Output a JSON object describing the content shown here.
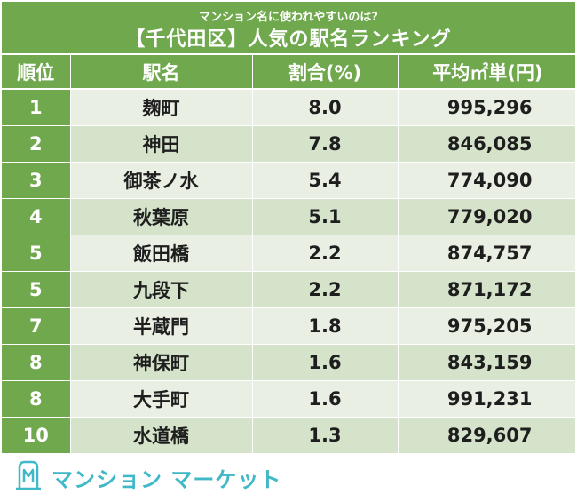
{
  "header": {
    "subtitle": "マンション名に使われやすいのは?",
    "title": "【千代田区】人気の駅名ランキング"
  },
  "table": {
    "columns": [
      "順位",
      "駅名",
      "割合(%)",
      "平均㎡単(円)"
    ],
    "rows": [
      {
        "rank": "1",
        "station": "麹町",
        "ratio": "8.0",
        "avg": "995,296"
      },
      {
        "rank": "2",
        "station": "神田",
        "ratio": "7.8",
        "avg": "846,085"
      },
      {
        "rank": "3",
        "station": "御茶ノ水",
        "ratio": "5.4",
        "avg": "774,090"
      },
      {
        "rank": "4",
        "station": "秋葉原",
        "ratio": "5.1",
        "avg": "779,020"
      },
      {
        "rank": "5",
        "station": "飯田橋",
        "ratio": "2.2",
        "avg": "874,757"
      },
      {
        "rank": "5",
        "station": "九段下",
        "ratio": "2.2",
        "avg": "871,172"
      },
      {
        "rank": "7",
        "station": "半蔵門",
        "ratio": "1.8",
        "avg": "975,205"
      },
      {
        "rank": "8",
        "station": "神保町",
        "ratio": "1.6",
        "avg": "843,159"
      },
      {
        "rank": "8",
        "station": "大手町",
        "ratio": "1.6",
        "avg": "991,231"
      },
      {
        "rank": "10",
        "station": "水道橋",
        "ratio": "1.3",
        "avg": "829,607"
      }
    ]
  },
  "logo": {
    "text": "マンション マーケット",
    "icon": "building-m-icon"
  },
  "colors": {
    "header_green": "#70a84d",
    "row_light": "#e9efe3",
    "row_dark": "#d5e3ca",
    "logo_teal": "#3fb8c7"
  },
  "chart_data": {
    "type": "table",
    "title": "【千代田区】人気の駅名ランキング",
    "subtitle": "マンション名に使われやすいのは?",
    "columns": [
      "順位",
      "駅名",
      "割合(%)",
      "平均㎡単(円)"
    ],
    "rows": [
      [
        1,
        "麹町",
        8.0,
        995296
      ],
      [
        2,
        "神田",
        7.8,
        846085
      ],
      [
        3,
        "御茶ノ水",
        5.4,
        774090
      ],
      [
        4,
        "秋葉原",
        5.1,
        779020
      ],
      [
        5,
        "飯田橋",
        2.2,
        874757
      ],
      [
        5,
        "九段下",
        2.2,
        871172
      ],
      [
        7,
        "半蔵門",
        1.8,
        975205
      ],
      [
        8,
        "神保町",
        1.6,
        843159
      ],
      [
        8,
        "大手町",
        1.6,
        991231
      ],
      [
        10,
        "水道橋",
        1.3,
        829607
      ]
    ]
  }
}
